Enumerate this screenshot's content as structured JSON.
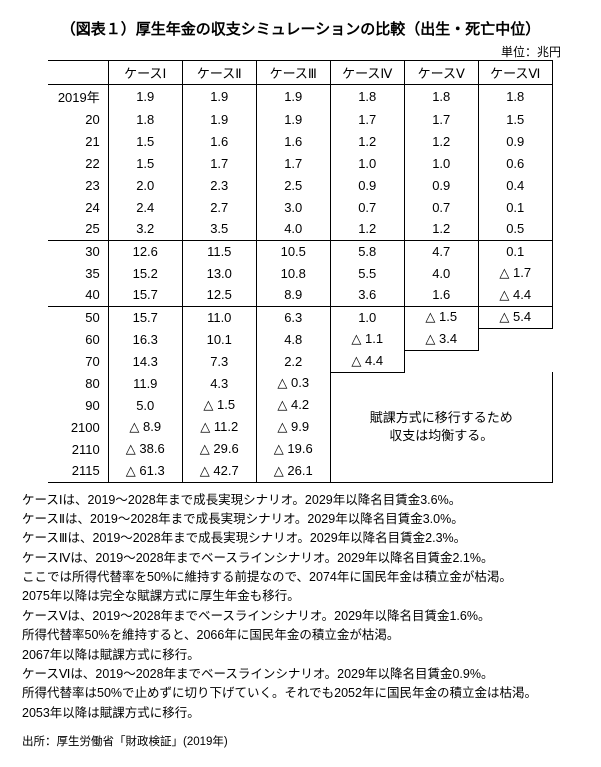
{
  "title": "（図表１）厚生年金の収支シミュレーションの比較（出生・死亡中位）",
  "unit": "単位：兆円",
  "headers": [
    "ケースⅠ",
    "ケースⅡ",
    "ケースⅢ",
    "ケースⅣ",
    "ケースⅤ",
    "ケースⅥ"
  ],
  "years": [
    "2019年",
    "20",
    "21",
    "22",
    "23",
    "24",
    "25",
    "30",
    "35",
    "40",
    "50",
    "60",
    "70",
    "80",
    "90",
    "2100",
    "2110",
    "2115"
  ],
  "data": {
    "c1": [
      "1.9",
      "1.8",
      "1.5",
      "1.5",
      "2.0",
      "2.4",
      "3.2",
      "12.6",
      "15.2",
      "15.7",
      "15.7",
      "16.3",
      "14.3",
      "11.9",
      "5.0",
      "△ 8.9",
      "△ 38.6",
      "△ 61.3"
    ],
    "c2": [
      "1.9",
      "1.9",
      "1.6",
      "1.7",
      "2.3",
      "2.7",
      "3.5",
      "11.5",
      "13.0",
      "12.5",
      "11.0",
      "10.1",
      "7.3",
      "4.3",
      "△ 1.5",
      "△ 11.2",
      "△ 29.6",
      "△ 42.7"
    ],
    "c3": [
      "1.9",
      "1.9",
      "1.6",
      "1.7",
      "2.5",
      "3.0",
      "4.0",
      "10.5",
      "10.8",
      "8.9",
      "6.3",
      "4.8",
      "2.2",
      "△ 0.3",
      "△ 4.2",
      "△ 9.9",
      "△ 19.6",
      "△ 26.1"
    ],
    "c4": [
      "1.8",
      "1.7",
      "1.2",
      "1.0",
      "0.9",
      "0.7",
      "1.2",
      "5.8",
      "5.5",
      "3.6",
      "1.0",
      "△ 1.1",
      "△ 4.4"
    ],
    "c5": [
      "1.8",
      "1.7",
      "1.2",
      "1.0",
      "0.9",
      "0.7",
      "1.2",
      "4.7",
      "4.0",
      "1.6",
      "△ 1.5",
      "△ 3.4"
    ],
    "c6": [
      "1.8",
      "1.5",
      "0.9",
      "0.6",
      "0.4",
      "0.1",
      "0.5",
      "0.1",
      "△ 1.7",
      "△ 4.4",
      "△ 5.4"
    ]
  },
  "annotation": {
    "line1": "賦課方式に移行するため",
    "line2": "収支は均衡する。"
  },
  "notes": [
    "ケースⅠは、2019～2028年まで成長実現シナリオ。2029年以降名目賃金3.6%。",
    "ケースⅡは、2019～2028年まで成長実現シナリオ。2029年以降名目賃金3.0%。",
    "ケースⅢは、2019～2028年まで成長実現シナリオ。2029年以降名目賃金2.3%。",
    "ケースⅣは、2019～2028年までベースラインシナリオ。2029年以降名目賃金2.1%。",
    "ここでは所得代替率を50%に維持する前提なので、2074年に国民年金は積立金が枯渇。",
    "2075年以降は完全な賦課方式に厚生年金も移行。",
    "ケースⅤは、2019～2028年までベースラインシナリオ。2029年以降名目賃金1.6%。",
    "所得代替率50%を維持すると、2066年に国民年金の積立金が枯渇。",
    "2067年以降は賦課方式に移行。",
    "ケースⅥは、2019～2028年までベースラインシナリオ。2029年以降名目賃金0.9%。",
    "所得代替率は50%で止めずに切り下げていく。それでも2052年に国民年金の積立金は枯渇。",
    "2053年以降は賦課方式に移行。"
  ],
  "source": "出所：厚生労働省「財政検証」(2019年)"
}
